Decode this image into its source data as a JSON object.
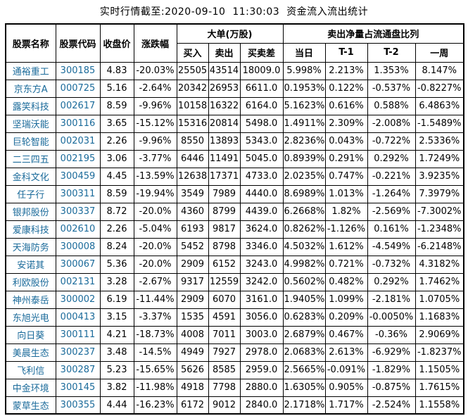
{
  "title": "实时行情截至:2020-09-10  11:30:03  资金流入流出统计",
  "colors": {
    "stock_link": "#1a6a9a",
    "text": "#000000",
    "border": "#000000",
    "background": "#ffffff"
  },
  "table": {
    "headers": {
      "stock_name": "股票名称",
      "stock_code": "股票代码",
      "close_price": "收盘价",
      "change_pct": "涨跌幅",
      "big_orders_group": "大单(万股)",
      "buy": "买入",
      "sell": "卖出",
      "buy_sell_diff": "买卖差",
      "net_sell_group": "卖出净量占流通盘比列",
      "today": "当日",
      "t1": "T-1",
      "t2": "T-2",
      "week": "一周"
    },
    "rows": [
      [
        "通裕重工",
        "300185",
        "4.83",
        "-20.03%",
        "25505",
        "43514",
        "18009.0",
        "5.998%",
        "2.213%",
        "1.353%",
        "8.147%"
      ],
      [
        "京东方A",
        "000725",
        "5.16",
        "-2.64%",
        "20342",
        "26953",
        "6611.0",
        "0.1953%",
        "0.122%",
        "-0.537%",
        "-0.8227%"
      ],
      [
        "露笑科技",
        "002617",
        "8.59",
        "-9.96%",
        "10158",
        "16322",
        "6164.0",
        "5.1623%",
        "0.616%",
        "0.588%",
        "6.4863%"
      ],
      [
        "坚瑞沃能",
        "300116",
        "3.65",
        "-15.12%",
        "15316",
        "20814",
        "5498.0",
        "1.4911%",
        "2.309%",
        "-2.008%",
        "-1.5489%"
      ],
      [
        "巨轮智能",
        "002031",
        "2.26",
        "-9.96%",
        "8550",
        "13893",
        "5343.0",
        "2.8236%",
        "0.043%",
        "-0.722%",
        "2.5336%"
      ],
      [
        "二三四五",
        "002195",
        "3.06",
        "-3.77%",
        "6446",
        "11491",
        "5045.0",
        "0.8939%",
        "0.291%",
        "0.292%",
        "1.7249%"
      ],
      [
        "金科文化",
        "300459",
        "4.45",
        "-13.59%",
        "12638",
        "17371",
        "4733.0",
        "2.0235%",
        "0.747%",
        "-0.221%",
        "3.9235%"
      ],
      [
        "任子行",
        "300311",
        "8.59",
        "-19.94%",
        "3549",
        "7989",
        "4440.0",
        "8.6989%",
        "1.013%",
        "-1.264%",
        "7.3979%"
      ],
      [
        "银邦股份",
        "300337",
        "8.72",
        "-20.0%",
        "4360",
        "8799",
        "4439.0",
        "6.2668%",
        "1.82%",
        "-2.569%",
        "-7.3002%"
      ],
      [
        "爱康科技",
        "002610",
        "2.26",
        "-5.04%",
        "6193",
        "9817",
        "3624.0",
        "0.8262%",
        "-1.126%",
        "0.161%",
        "-1.2348%"
      ],
      [
        "天海防务",
        "300008",
        "8.24",
        "-20.0%",
        "5452",
        "8798",
        "3346.0",
        "4.5032%",
        "1.612%",
        "-4.549%",
        "-6.2148%"
      ],
      [
        "安诺其",
        "300067",
        "5.36",
        "-20.0%",
        "2909",
        "6152",
        "3243.0",
        "4.9982%",
        "0.721%",
        "-0.732%",
        "4.3182%"
      ],
      [
        "利欧股份",
        "002131",
        "3.28",
        "-2.67%",
        "9317",
        "12559",
        "3242.0",
        "0.5602%",
        "0.482%",
        "0.292%",
        "1.7462%"
      ],
      [
        "神州泰岳",
        "300002",
        "6.19",
        "-11.44%",
        "2909",
        "6070",
        "3161.0",
        "1.9405%",
        "1.099%",
        "-2.181%",
        "1.0705%"
      ],
      [
        "东旭光电",
        "000413",
        "3.15",
        "-3.37%",
        "1535",
        "4591",
        "3056.0",
        "0.6283%",
        "0.209%",
        "-0.0050%",
        "1.1683%"
      ],
      [
        "向日葵",
        "300111",
        "4.21",
        "-18.73%",
        "4008",
        "7011",
        "3003.0",
        "2.6879%",
        "0.467%",
        "-0.36%",
        "2.9069%"
      ],
      [
        "美晨生态",
        "300237",
        "3.48",
        "-14.5%",
        "4949",
        "7927",
        "2978.0",
        "2.0683%",
        "2.613%",
        "-6.929%",
        "-1.8237%"
      ],
      [
        "飞利信",
        "300287",
        "5.23",
        "-15.65%",
        "5626",
        "8585",
        "2959.0",
        "2.5665%",
        "-0.091%",
        "-1.829%",
        "1.1505%"
      ],
      [
        "中金环境",
        "300145",
        "3.82",
        "-11.98%",
        "4918",
        "7798",
        "2880.0",
        "1.6305%",
        "0.905%",
        "-0.875%",
        "1.7615%"
      ],
      [
        "蒙草生态",
        "300355",
        "4.44",
        "-16.23%",
        "6172",
        "9012",
        "2840.0",
        "2.1718%",
        "1.717%",
        "-2.524%",
        "1.1558%"
      ]
    ]
  }
}
